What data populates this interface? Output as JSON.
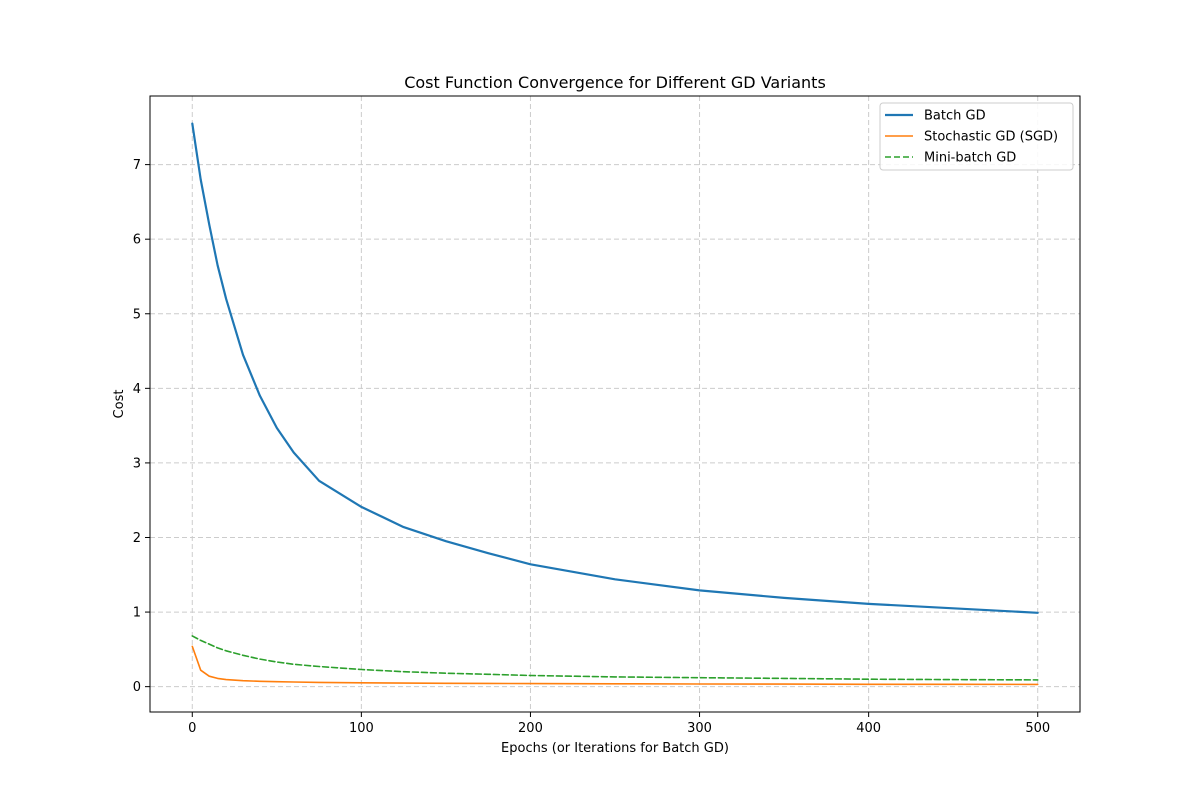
{
  "chart_data": {
    "type": "line",
    "title": "Cost Function Convergence for Different GD Variants",
    "xlabel": "Epochs (or Iterations for Batch GD)",
    "ylabel": "Cost",
    "xlim": [
      -25,
      525
    ],
    "ylim": [
      -0.34,
      7.92
    ],
    "xticks": [
      0,
      100,
      200,
      300,
      400,
      500
    ],
    "yticks": [
      0,
      1,
      2,
      3,
      4,
      5,
      6,
      7
    ],
    "grid": true,
    "legend_position": "top-right",
    "x": [
      0,
      5,
      10,
      15,
      20,
      30,
      40,
      50,
      60,
      75,
      100,
      125,
      150,
      175,
      200,
      250,
      300,
      350,
      400,
      450,
      500
    ],
    "series": [
      {
        "name": "Batch GD",
        "color": "#1f77b4",
        "style": "solid",
        "values": [
          7.55,
          6.8,
          6.2,
          5.65,
          5.2,
          4.45,
          3.9,
          3.47,
          3.14,
          2.76,
          2.41,
          2.14,
          1.95,
          1.79,
          1.64,
          1.44,
          1.29,
          1.19,
          1.11,
          1.05,
          0.99
        ]
      },
      {
        "name": "Stochastic GD (SGD)",
        "color": "#ff7f0e",
        "style": "solid",
        "values": [
          0.54,
          0.22,
          0.14,
          0.11,
          0.095,
          0.08,
          0.072,
          0.066,
          0.062,
          0.057,
          0.052,
          0.048,
          0.045,
          0.043,
          0.041,
          0.038,
          0.036,
          0.034,
          0.032,
          0.031,
          0.03
        ]
      },
      {
        "name": "Mini-batch GD",
        "color": "#2ca02c",
        "style": "dashed",
        "values": [
          0.68,
          0.62,
          0.57,
          0.52,
          0.48,
          0.42,
          0.37,
          0.33,
          0.3,
          0.27,
          0.23,
          0.2,
          0.18,
          0.165,
          0.15,
          0.13,
          0.12,
          0.11,
          0.1,
          0.095,
          0.09
        ]
      }
    ]
  }
}
